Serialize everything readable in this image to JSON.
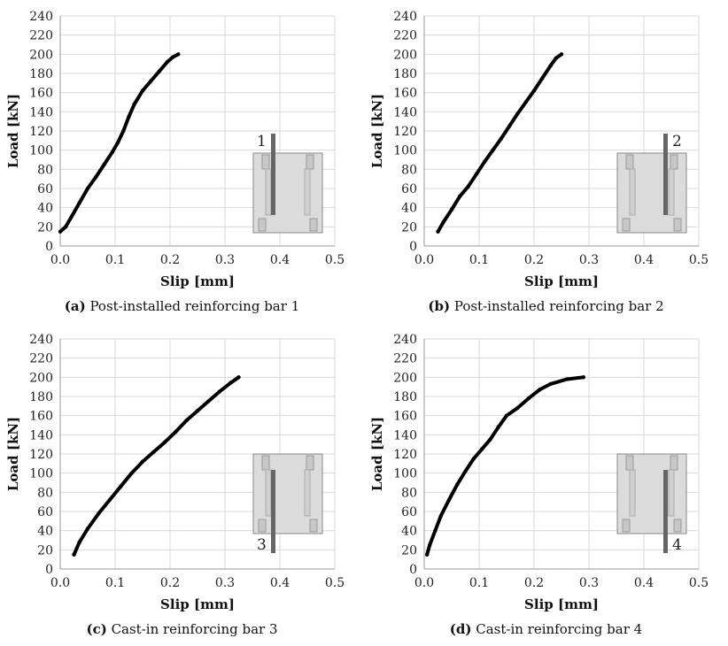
{
  "chart_data": [
    {
      "type": "line",
      "caption_tag": "(a)",
      "caption_text": "Post-installed reinforcing bar 1",
      "xlabel": "Slip [mm]",
      "ylabel": "Load [kN]",
      "xlim": [
        0,
        0.5
      ],
      "ylim": [
        0,
        240
      ],
      "xticks": [
        "0.0",
        "0.1",
        "0.2",
        "0.3",
        "0.4",
        "0.5"
      ],
      "yticks": [
        "0",
        "20",
        "40",
        "60",
        "80",
        "100",
        "120",
        "140",
        "160",
        "180",
        "200",
        "220",
        "240"
      ],
      "grid": true,
      "inset_label": "1",
      "inset_bar": "left",
      "series": [
        {
          "x": [
            0.0,
            0.01,
            0.02,
            0.035,
            0.05,
            0.065,
            0.08,
            0.095,
            0.105,
            0.115,
            0.125,
            0.135,
            0.15,
            0.165,
            0.18,
            0.195,
            0.205,
            0.215
          ],
          "y": [
            15,
            20,
            30,
            45,
            60,
            72,
            85,
            98,
            108,
            120,
            135,
            148,
            162,
            172,
            182,
            192,
            197,
            200
          ]
        }
      ]
    },
    {
      "type": "line",
      "caption_tag": "(b)",
      "caption_text": "Post-installed reinforcing bar 2",
      "xlabel": "Slip [mm]",
      "ylabel": "Load [kN]",
      "xlim": [
        0,
        0.5
      ],
      "ylim": [
        0,
        240
      ],
      "xticks": [
        "0.0",
        "0.1",
        "0.2",
        "0.3",
        "0.4",
        "0.5"
      ],
      "yticks": [
        "0",
        "20",
        "40",
        "60",
        "80",
        "100",
        "120",
        "140",
        "160",
        "180",
        "200",
        "220",
        "240"
      ],
      "grid": true,
      "inset_label": "2",
      "inset_bar": "right",
      "series": [
        {
          "x": [
            0.025,
            0.035,
            0.05,
            0.065,
            0.08,
            0.095,
            0.11,
            0.125,
            0.14,
            0.155,
            0.17,
            0.185,
            0.2,
            0.215,
            0.23,
            0.24,
            0.25
          ],
          "y": [
            15,
            25,
            38,
            52,
            62,
            75,
            88,
            100,
            112,
            125,
            138,
            150,
            162,
            175,
            188,
            196,
            200
          ]
        }
      ]
    },
    {
      "type": "line",
      "caption_tag": "(c)",
      "caption_text": "Cast-in reinforcing bar 3",
      "xlabel": "Slip [mm]",
      "ylabel": "Load [kN]",
      "xlim": [
        0,
        0.5
      ],
      "ylim": [
        0,
        240
      ],
      "xticks": [
        "0.0",
        "0.1",
        "0.2",
        "0.3",
        "0.4",
        "0.5"
      ],
      "yticks": [
        "0",
        "20",
        "40",
        "60",
        "80",
        "100",
        "120",
        "140",
        "160",
        "180",
        "200",
        "220",
        "240"
      ],
      "grid": true,
      "inset_label": "3",
      "inset_bar": "left",
      "series": [
        {
          "x": [
            0.025,
            0.035,
            0.05,
            0.07,
            0.09,
            0.11,
            0.13,
            0.15,
            0.17,
            0.19,
            0.21,
            0.23,
            0.25,
            0.27,
            0.29,
            0.31,
            0.325
          ],
          "y": [
            15,
            28,
            42,
            58,
            72,
            86,
            100,
            112,
            122,
            132,
            143,
            155,
            165,
            175,
            185,
            194,
            200
          ]
        }
      ]
    },
    {
      "type": "line",
      "caption_tag": "(d)",
      "caption_text": "Cast-in reinforcing bar 4",
      "xlabel": "Slip [mm]",
      "ylabel": "Load [kN]",
      "xlim": [
        0,
        0.5
      ],
      "ylim": [
        0,
        240
      ],
      "xticks": [
        "0.0",
        "0.1",
        "0.2",
        "0.3",
        "0.4",
        "0.5"
      ],
      "yticks": [
        "0",
        "20",
        "40",
        "60",
        "80",
        "100",
        "120",
        "140",
        "160",
        "180",
        "200",
        "220",
        "240"
      ],
      "grid": true,
      "inset_label": "4",
      "inset_bar": "right",
      "series": [
        {
          "x": [
            0.005,
            0.01,
            0.02,
            0.03,
            0.045,
            0.06,
            0.075,
            0.09,
            0.105,
            0.12,
            0.135,
            0.15,
            0.17,
            0.19,
            0.21,
            0.23,
            0.26,
            0.29
          ],
          "y": [
            15,
            25,
            40,
            55,
            72,
            88,
            102,
            115,
            125,
            135,
            148,
            160,
            168,
            178,
            187,
            193,
            198,
            200
          ]
        }
      ]
    }
  ]
}
